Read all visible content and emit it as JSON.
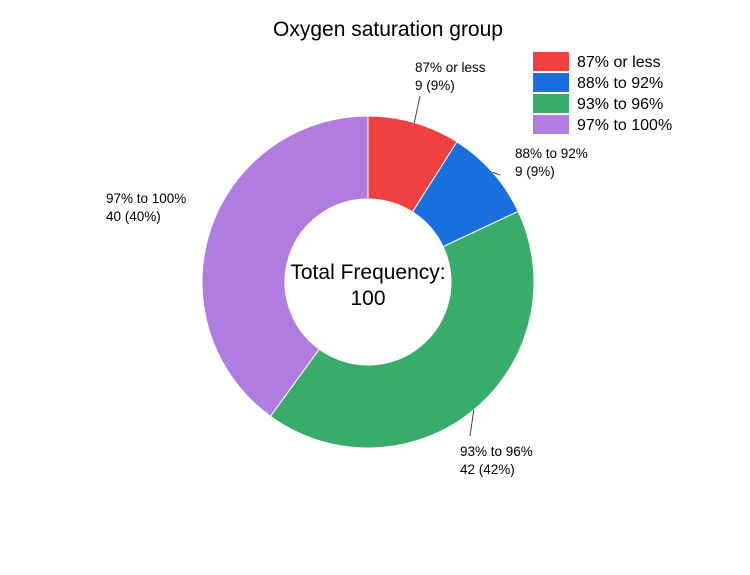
{
  "chart_data": {
    "type": "pie",
    "title": "Oxygen saturation group",
    "center_label": [
      "Total Frequency:",
      "100"
    ],
    "categories": [
      "87% or less",
      "88% to 92%",
      "93% to 96%",
      "97% to 100%"
    ],
    "values": [
      9,
      9,
      42,
      40
    ],
    "data_labels": [
      [
        "87% or less",
        "9 (9%)"
      ],
      [
        "88% to 92%",
        "9 (9%)"
      ],
      [
        "93% to 96%",
        "42 (42%)"
      ],
      [
        "97% to 100%",
        "40 (40%)"
      ]
    ],
    "colors": [
      "#f04141",
      "#1a6fde",
      "#38ad6b",
      "#b07ce0"
    ],
    "legend_position": "top-right",
    "donut": true
  }
}
